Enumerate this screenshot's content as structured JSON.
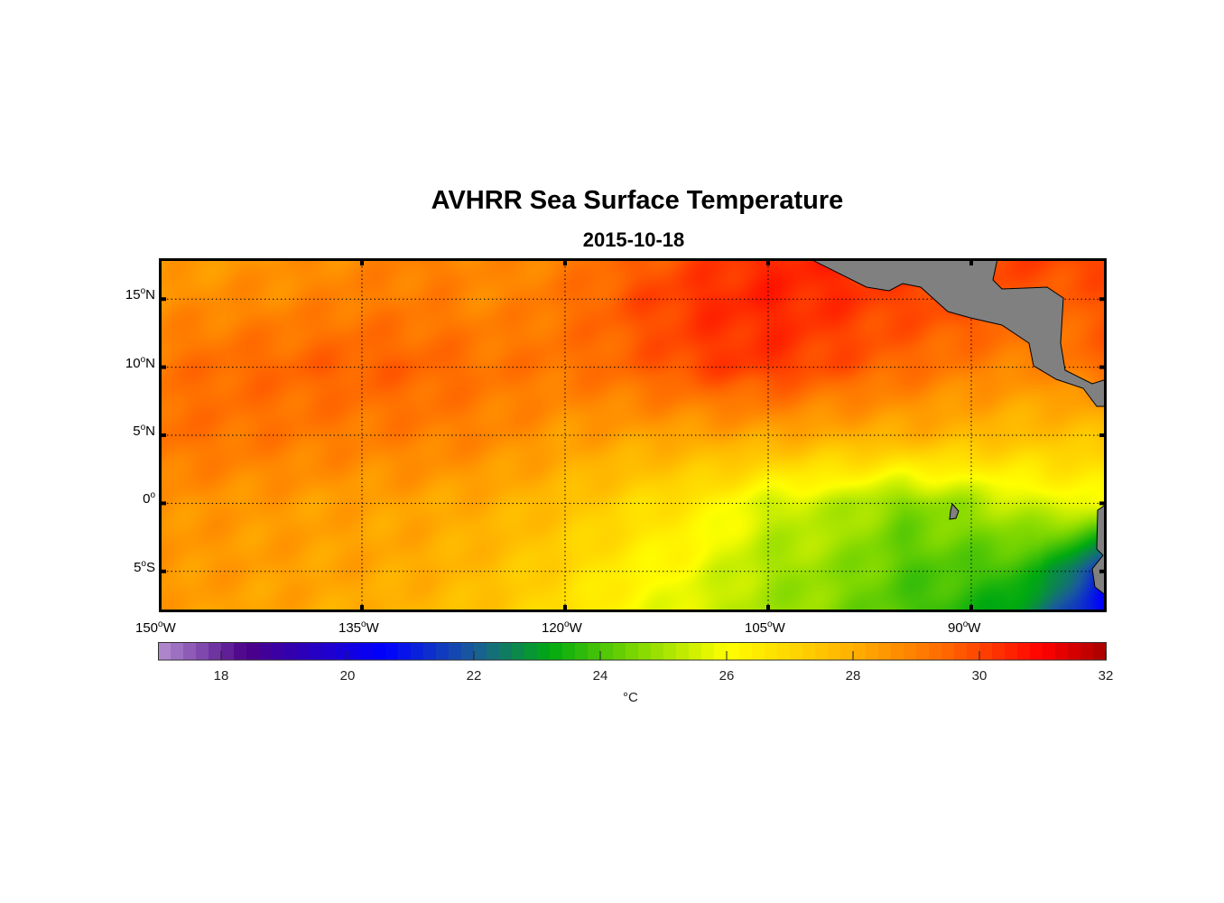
{
  "chart_data": {
    "type": "heatmap",
    "title": "AVHRR Sea Surface Temperature",
    "subtitle": "2015-10-18",
    "lon_range": [
      -150,
      -80
    ],
    "lat_range": [
      -8,
      18
    ],
    "lon_ticks": [
      {
        "value": -150,
        "deg": "150",
        "hemi": "W"
      },
      {
        "value": -135,
        "deg": "135",
        "hemi": "W"
      },
      {
        "value": -120,
        "deg": "120",
        "hemi": "W"
      },
      {
        "value": -105,
        "deg": "105",
        "hemi": "W"
      },
      {
        "value": -90,
        "deg": "90",
        "hemi": "W"
      }
    ],
    "lat_ticks": [
      {
        "value": 15,
        "deg": "15",
        "hemi": "N"
      },
      {
        "value": 10,
        "deg": "10",
        "hemi": "N"
      },
      {
        "value": 5,
        "deg": "5",
        "hemi": "N"
      },
      {
        "value": 0,
        "deg": "0",
        "hemi": ""
      },
      {
        "value": -5,
        "deg": "5",
        "hemi": "S"
      }
    ],
    "grid": true,
    "grid_lons": [
      -150,
      -145,
      -140,
      -135,
      -130,
      -125,
      -120,
      -115,
      -110,
      -105,
      -100,
      -95,
      -90,
      -85,
      -80
    ],
    "grid_lats": [
      18,
      15,
      10,
      5,
      0,
      -5,
      -8
    ],
    "sst_c": [
      [
        28.3,
        28.5,
        28.6,
        28.8,
        29.0,
        28.7,
        29.0,
        29.5,
        30.0,
        30.4,
        30.5,
        30.0,
        30.0,
        30.0,
        30.0
      ],
      [
        28.6,
        28.7,
        28.8,
        29.0,
        29.0,
        28.8,
        29.2,
        29.8,
        30.3,
        30.5,
        30.3,
        30.0,
        30.0,
        29.6,
        29.7
      ],
      [
        29.2,
        29.4,
        29.5,
        29.6,
        29.5,
        29.2,
        29.2,
        29.5,
        30.0,
        30.2,
        29.8,
        29.4,
        29.0,
        28.8,
        29.5
      ],
      [
        29.3,
        29.2,
        29.1,
        29.0,
        29.0,
        28.8,
        28.4,
        28.3,
        28.2,
        28.2,
        28.0,
        28.0,
        27.8,
        27.6,
        27.5
      ],
      [
        28.6,
        28.5,
        28.4,
        28.3,
        28.2,
        28.0,
        27.6,
        27.0,
        26.5,
        25.5,
        25.3,
        24.6,
        25.0,
        25.6,
        26.0
      ],
      [
        28.5,
        28.4,
        28.3,
        28.2,
        28.0,
        27.6,
        27.0,
        26.3,
        25.8,
        25.0,
        24.8,
        24.1,
        24.0,
        23.5,
        20.8
      ],
      [
        28.4,
        28.3,
        28.2,
        28.0,
        27.8,
        27.4,
        26.8,
        26.0,
        25.5,
        25.0,
        24.6,
        24.0,
        23.5,
        22.5,
        20.5
      ]
    ],
    "colorbar": {
      "range": [
        17,
        32
      ],
      "ticks": [
        "18",
        "20",
        "22",
        "24",
        "26",
        "28",
        "30",
        "32"
      ],
      "label": "°C",
      "stops": [
        [
          17,
          "#b38fd0"
        ],
        [
          18.4,
          "#4b0088"
        ],
        [
          20.6,
          "#0000ff"
        ],
        [
          22,
          "#1a5c9a"
        ],
        [
          23.2,
          "#00aa10"
        ],
        [
          24.6,
          "#80d800"
        ],
        [
          26,
          "#ffff00"
        ],
        [
          28,
          "#ffb000"
        ],
        [
          29.5,
          "#ff6600"
        ],
        [
          31,
          "#ff0000"
        ],
        [
          32,
          "#a80000"
        ]
      ]
    },
    "land_color": "#808080"
  }
}
